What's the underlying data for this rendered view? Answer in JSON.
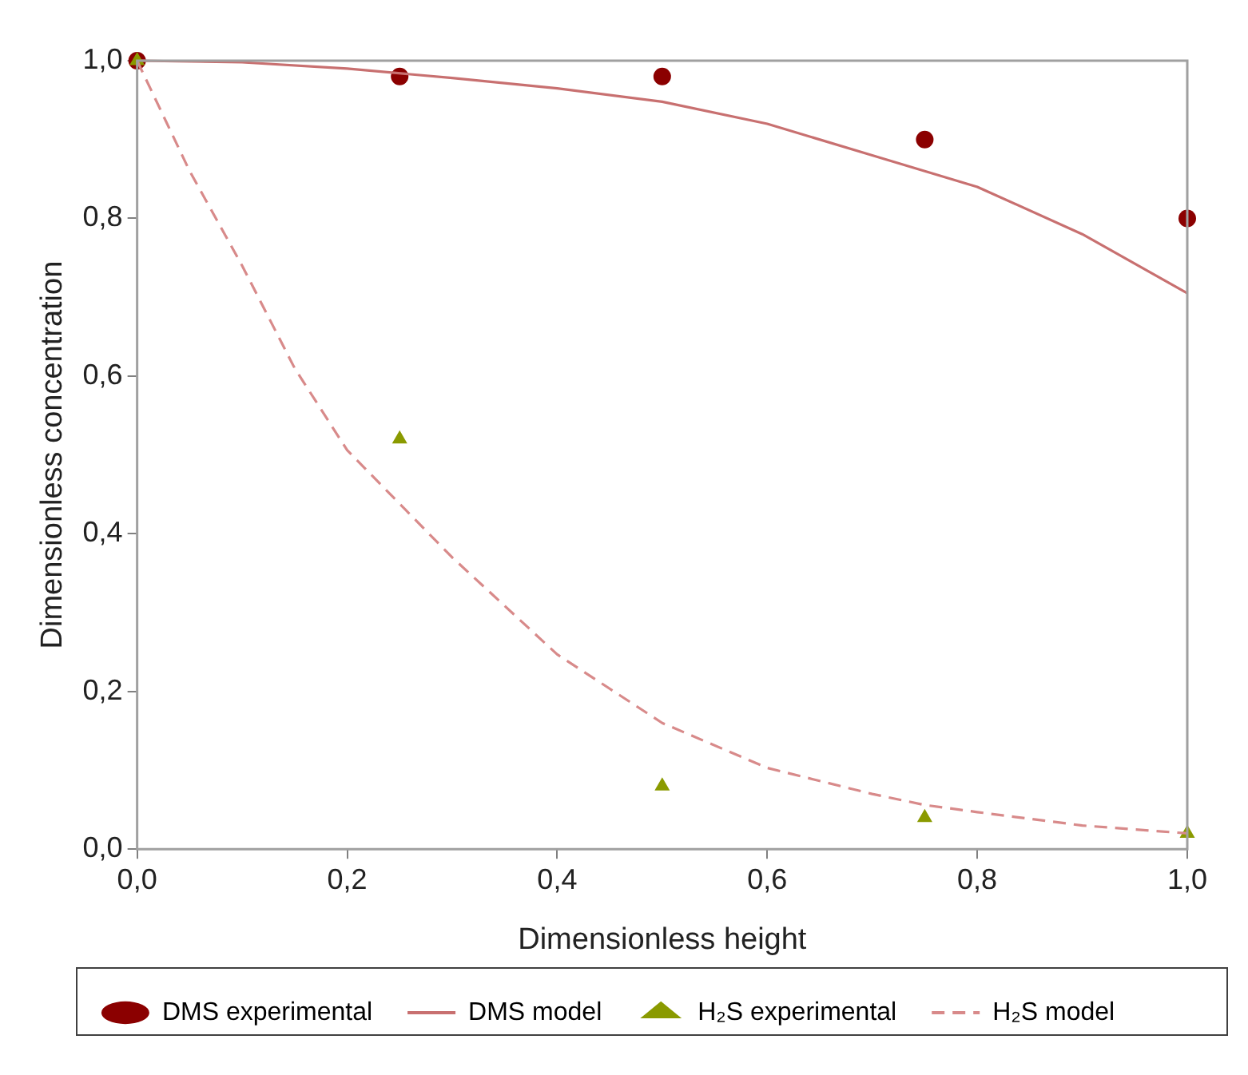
{
  "chart_data": {
    "type": "scatter",
    "xlabel": "Dimensionless height",
    "ylabel": "Dimensionless concentration",
    "xlim": [
      0,
      1
    ],
    "ylim": [
      0,
      1
    ],
    "xticks": [
      {
        "value": 0,
        "label": "0,0"
      },
      {
        "value": 0.2,
        "label": "0,2"
      },
      {
        "value": 0.4,
        "label": "0,4"
      },
      {
        "value": 0.6,
        "label": "0,6"
      },
      {
        "value": 0.8,
        "label": "0,8"
      },
      {
        "value": 1,
        "label": "1,0"
      }
    ],
    "yticks": [
      {
        "value": 0,
        "label": "0,0"
      },
      {
        "value": 0.2,
        "label": "0,2"
      },
      {
        "value": 0.4,
        "label": "0,4"
      },
      {
        "value": 0.6,
        "label": "0,6"
      },
      {
        "value": 0.8,
        "label": "0,8"
      },
      {
        "value": 1,
        "label": "1,0"
      }
    ],
    "legend": "bottom",
    "series": [
      {
        "name": "DMS experimental",
        "marker": "circle",
        "color": "#8b0000",
        "x": [
          0,
          0.25,
          0.5,
          0.75,
          1
        ],
        "values": [
          1,
          0.98,
          0.98,
          0.9,
          0.8
        ]
      },
      {
        "name": "DMS model",
        "type": "line",
        "marker": "none",
        "line_style": "solid",
        "color": "#c87070",
        "x": [
          0,
          0.1,
          0.2,
          0.3,
          0.4,
          0.5,
          0.6,
          0.7,
          0.8,
          0.9,
          1
        ],
        "values": [
          1,
          0.998,
          0.99,
          0.978,
          0.965,
          0.948,
          0.92,
          0.88,
          0.84,
          0.78,
          0.705
        ]
      },
      {
        "name": "H₂S experimental",
        "marker": "triangle",
        "color": "#8a9a00",
        "x": [
          0,
          0.25,
          0.5,
          0.75,
          1
        ],
        "values": [
          1,
          0.52,
          0.08,
          0.04,
          0.02
        ]
      },
      {
        "name": "H₂S model",
        "type": "line",
        "marker": "none",
        "line_style": "dashed",
        "color": "#d88a8a",
        "x": [
          0,
          0.05,
          0.1,
          0.15,
          0.2,
          0.25,
          0.3,
          0.4,
          0.5,
          0.6,
          0.7,
          0.75,
          0.8,
          0.9,
          1
        ],
        "values": [
          1,
          0.86,
          0.74,
          0.61,
          0.506,
          0.438,
          0.37,
          0.247,
          0.16,
          0.103,
          0.07,
          0.056,
          0.047,
          0.03,
          0.02
        ]
      }
    ]
  }
}
